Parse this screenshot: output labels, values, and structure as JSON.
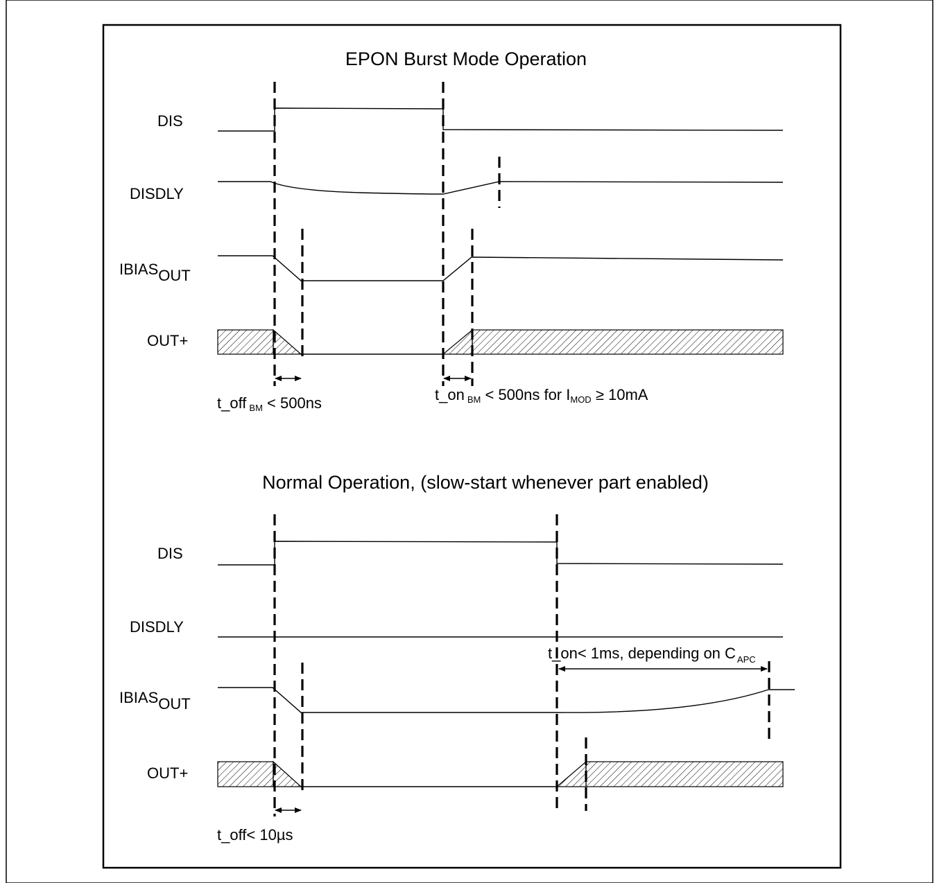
{
  "section1": {
    "title": "EPON Burst Mode Operation",
    "dis_label": "DIS",
    "disdly_label": "DISDLY",
    "ibias_main": "IBIAS",
    "ibias_sub": "OUT",
    "out_label": "OUT+",
    "toff_main": "t_off",
    "toff_sub": "BM",
    "toff_rest": " < 500ns",
    "ton_main": "t_on",
    "ton_sub": "BM",
    "ton_rest": " < 500ns for I",
    "ton_imod_sub": "MOD",
    "ton_rest2": " ≥ 10mA"
  },
  "section2": {
    "title": "Normal Operation, (slow-start whenever part enabled)",
    "dis_label": "DIS",
    "disdly_label": "DISDLY",
    "ibias_main": "IBIAS",
    "ibias_sub": "OUT",
    "out_label": "OUT+",
    "toff_text": "t_off< 10µs",
    "ton_main": "t_on< 1ms, depending on C",
    "ton_sub": "APC"
  }
}
